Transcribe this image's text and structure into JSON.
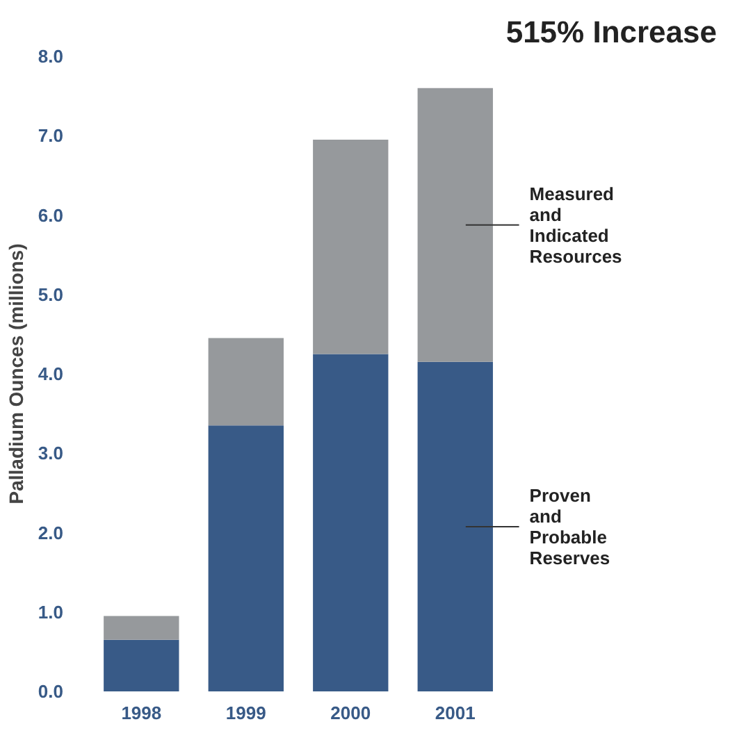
{
  "chart_data": {
    "type": "bar",
    "stacked": true,
    "categories": [
      "1998",
      "1999",
      "2000",
      "2001"
    ],
    "series": [
      {
        "name": "Proven and Probable Reserves",
        "color": "#385a87",
        "values": [
          0.65,
          3.35,
          4.25,
          4.15
        ]
      },
      {
        "name": "Measured and Indicated Resources",
        "color": "#96999c",
        "values": [
          0.3,
          1.1,
          2.7,
          3.45
        ]
      }
    ],
    "ylabel": "Palladium Ounces (millions)",
    "ylim": [
      0,
      8
    ],
    "yticks": [
      {
        "value": 0,
        "label": "0.0"
      },
      {
        "value": 1,
        "label": "1.0"
      },
      {
        "value": 2,
        "label": "2.0"
      },
      {
        "value": 3,
        "label": "3.0"
      },
      {
        "value": 4,
        "label": "4.0"
      },
      {
        "value": 5,
        "label": "5.0"
      },
      {
        "value": 6,
        "label": "6.0"
      },
      {
        "value": 7,
        "label": "7.0"
      },
      {
        "value": 8,
        "label": "8.0"
      }
    ],
    "annotations": [
      "515% Increase"
    ],
    "grid": false,
    "legend": "right"
  }
}
